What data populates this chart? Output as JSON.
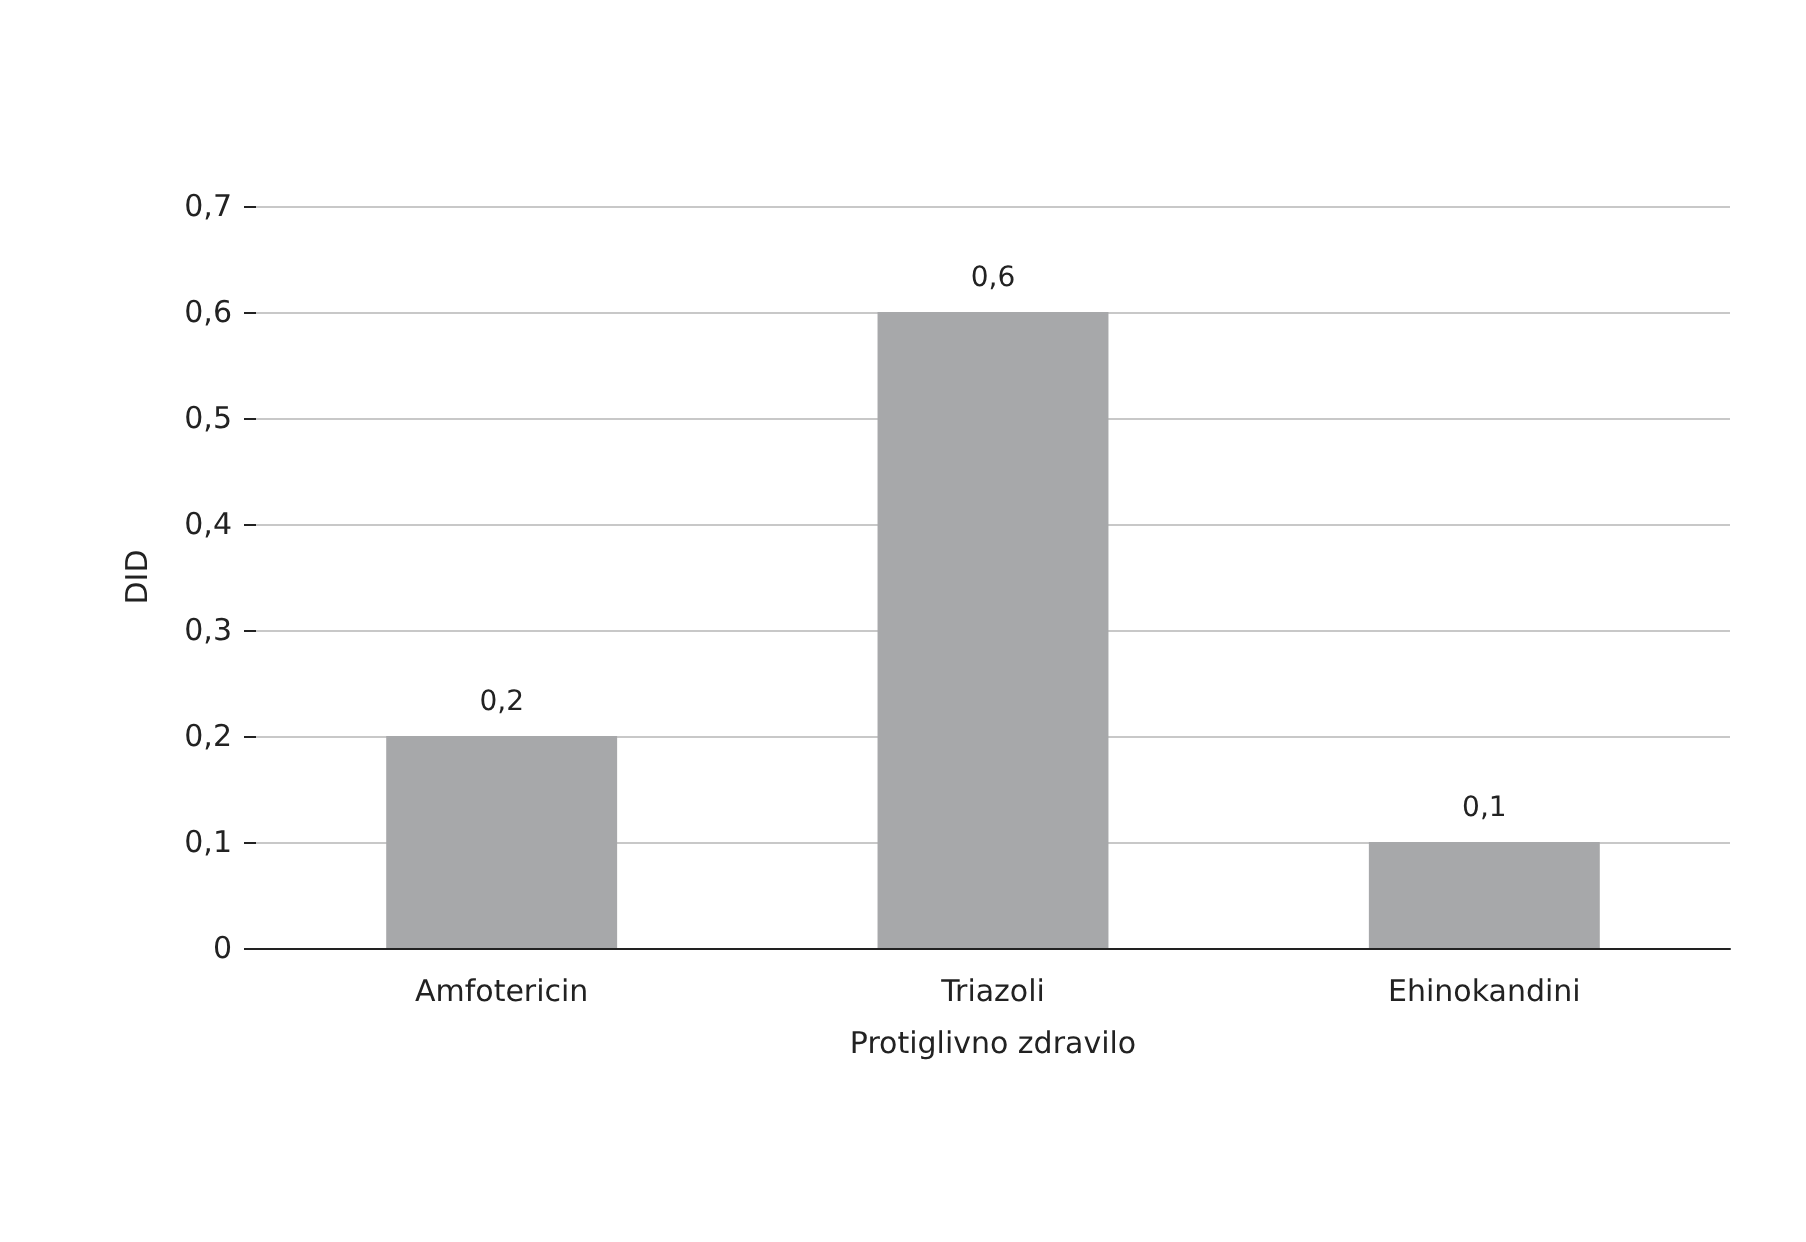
{
  "chart_data": {
    "type": "bar",
    "xlabel": "Protiglivno zdravilo",
    "ylabel": "DID",
    "categories": [
      "Amfotericin",
      "Triazoli",
      "Ehinokandini"
    ],
    "values": [
      0.2,
      0.6,
      0.1
    ],
    "value_labels": [
      "0,2",
      "0,6",
      "0,1"
    ],
    "color": "#a7a8aa",
    "ylim": [
      0,
      0.7
    ],
    "yticks": [
      {
        "value": 0,
        "label": "0"
      },
      {
        "value": 0.1,
        "label": "0,1"
      },
      {
        "value": 0.2,
        "label": "0,2"
      },
      {
        "value": 0.3,
        "label": "0,3"
      },
      {
        "value": 0.4,
        "label": "0,4"
      },
      {
        "value": 0.5,
        "label": "0,5"
      },
      {
        "value": 0.6,
        "label": "0,6"
      },
      {
        "value": 0.7,
        "label": "0,7"
      }
    ],
    "grid": "y"
  }
}
